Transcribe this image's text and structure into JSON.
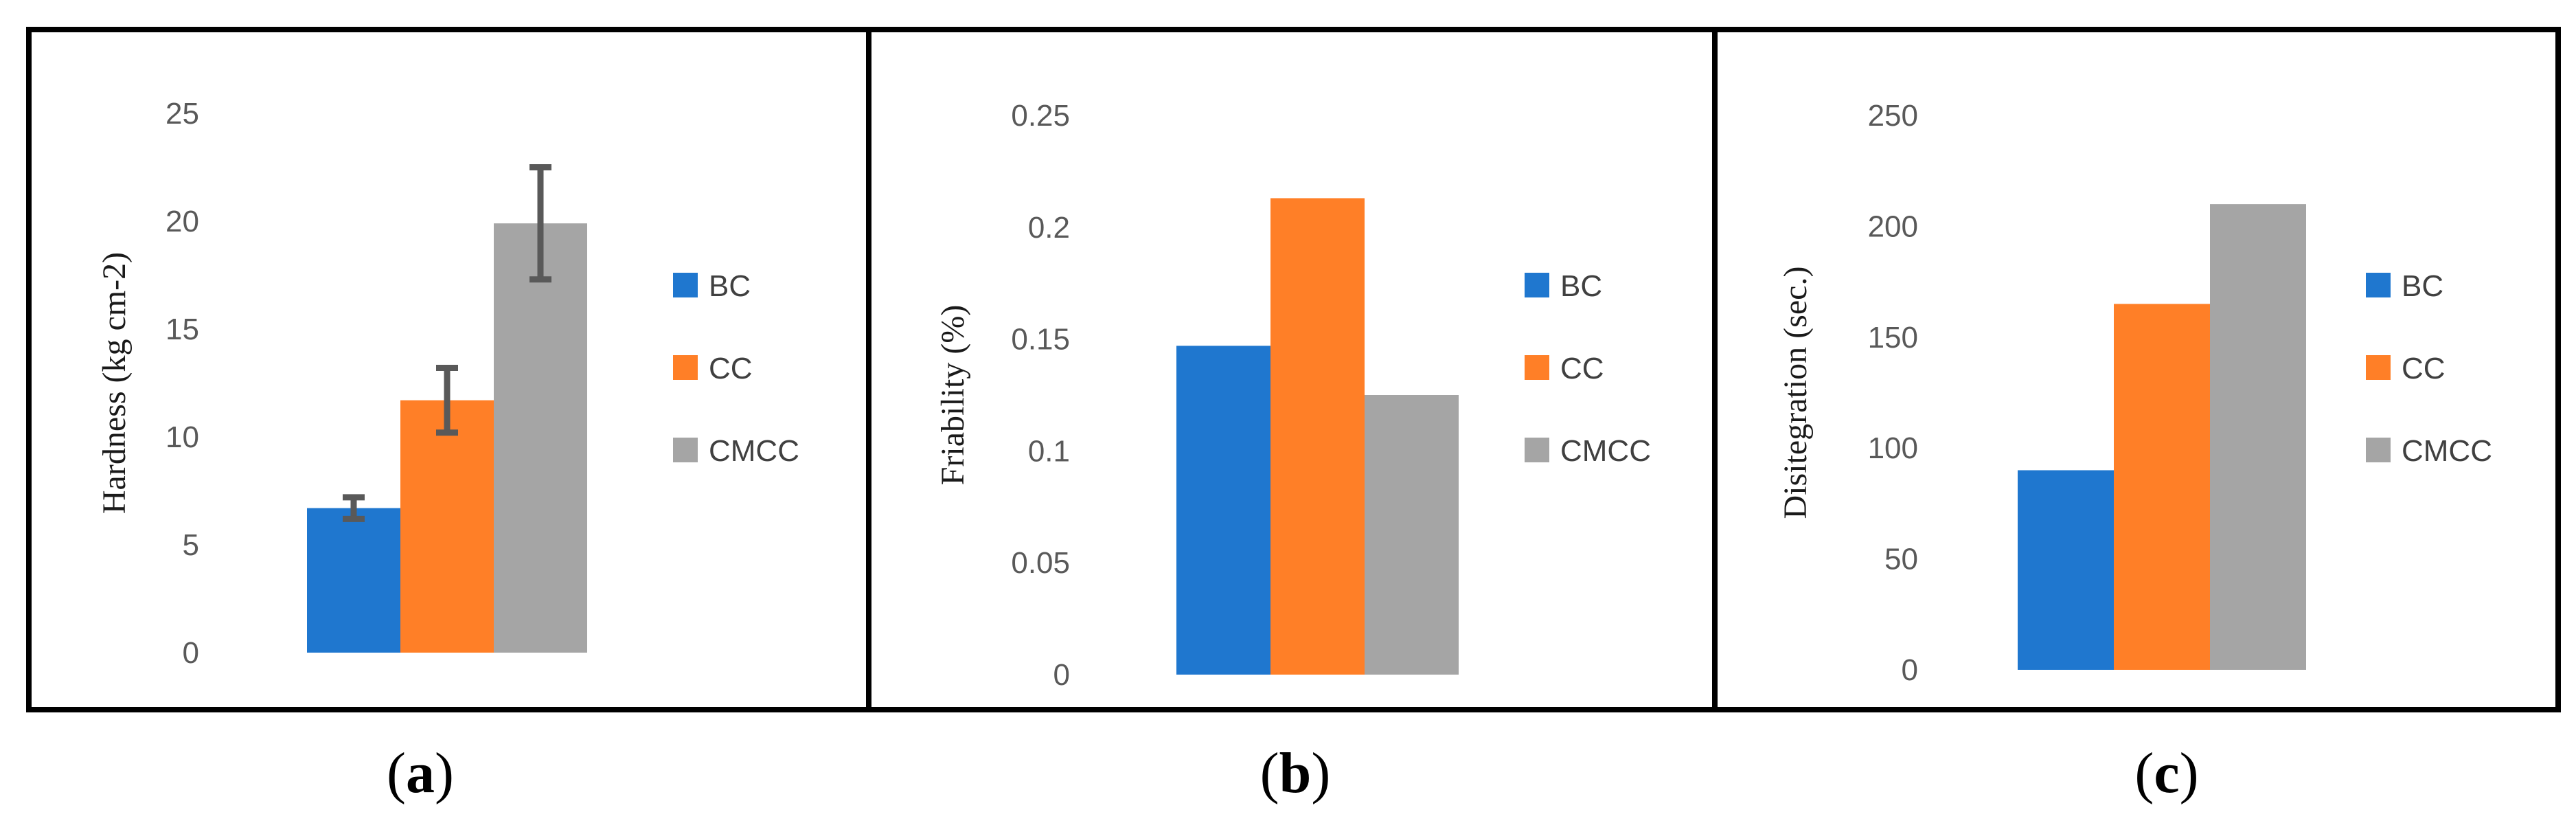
{
  "chart_data": [
    {
      "type": "bar",
      "panel": "a",
      "caption_letter": "a",
      "ylabel": "Hardness (kg cm-2)",
      "ylim": [
        0,
        25
      ],
      "yticks": [
        0,
        5,
        10,
        15,
        20,
        25
      ],
      "series": [
        {
          "name": "BC",
          "value": 6.7,
          "error": 0.5,
          "color": "#1f77cf"
        },
        {
          "name": "CC",
          "value": 11.7,
          "error": 1.5,
          "color": "#ff7f27"
        },
        {
          "name": "CMCC",
          "value": 19.9,
          "error": 2.6,
          "color": "#a5a5a5"
        }
      ],
      "legend_position": "right"
    },
    {
      "type": "bar",
      "panel": "b",
      "caption_letter": "b",
      "ylabel": "Friability (%)",
      "ylim": [
        0,
        0.25
      ],
      "yticks": [
        "0",
        "0.05",
        "0.1",
        "0.15",
        "0.2",
        "0.25"
      ],
      "series": [
        {
          "name": "BC",
          "value": 0.147,
          "color": "#1f77cf"
        },
        {
          "name": "CC",
          "value": 0.213,
          "color": "#ff7f27"
        },
        {
          "name": "CMCC",
          "value": 0.125,
          "color": "#a5a5a5"
        }
      ],
      "legend_position": "right"
    },
    {
      "type": "bar",
      "panel": "c",
      "caption_letter": "c",
      "ylabel": "Disitegration (sec.)",
      "ylim": [
        0,
        250
      ],
      "yticks": [
        0,
        50,
        100,
        150,
        200,
        250
      ],
      "series": [
        {
          "name": "BC",
          "value": 90,
          "color": "#1f77cf"
        },
        {
          "name": "CC",
          "value": 165,
          "color": "#ff7f27"
        },
        {
          "name": "CMCC",
          "value": 210,
          "color": "#a5a5a5"
        }
      ],
      "legend_position": "right"
    }
  ]
}
